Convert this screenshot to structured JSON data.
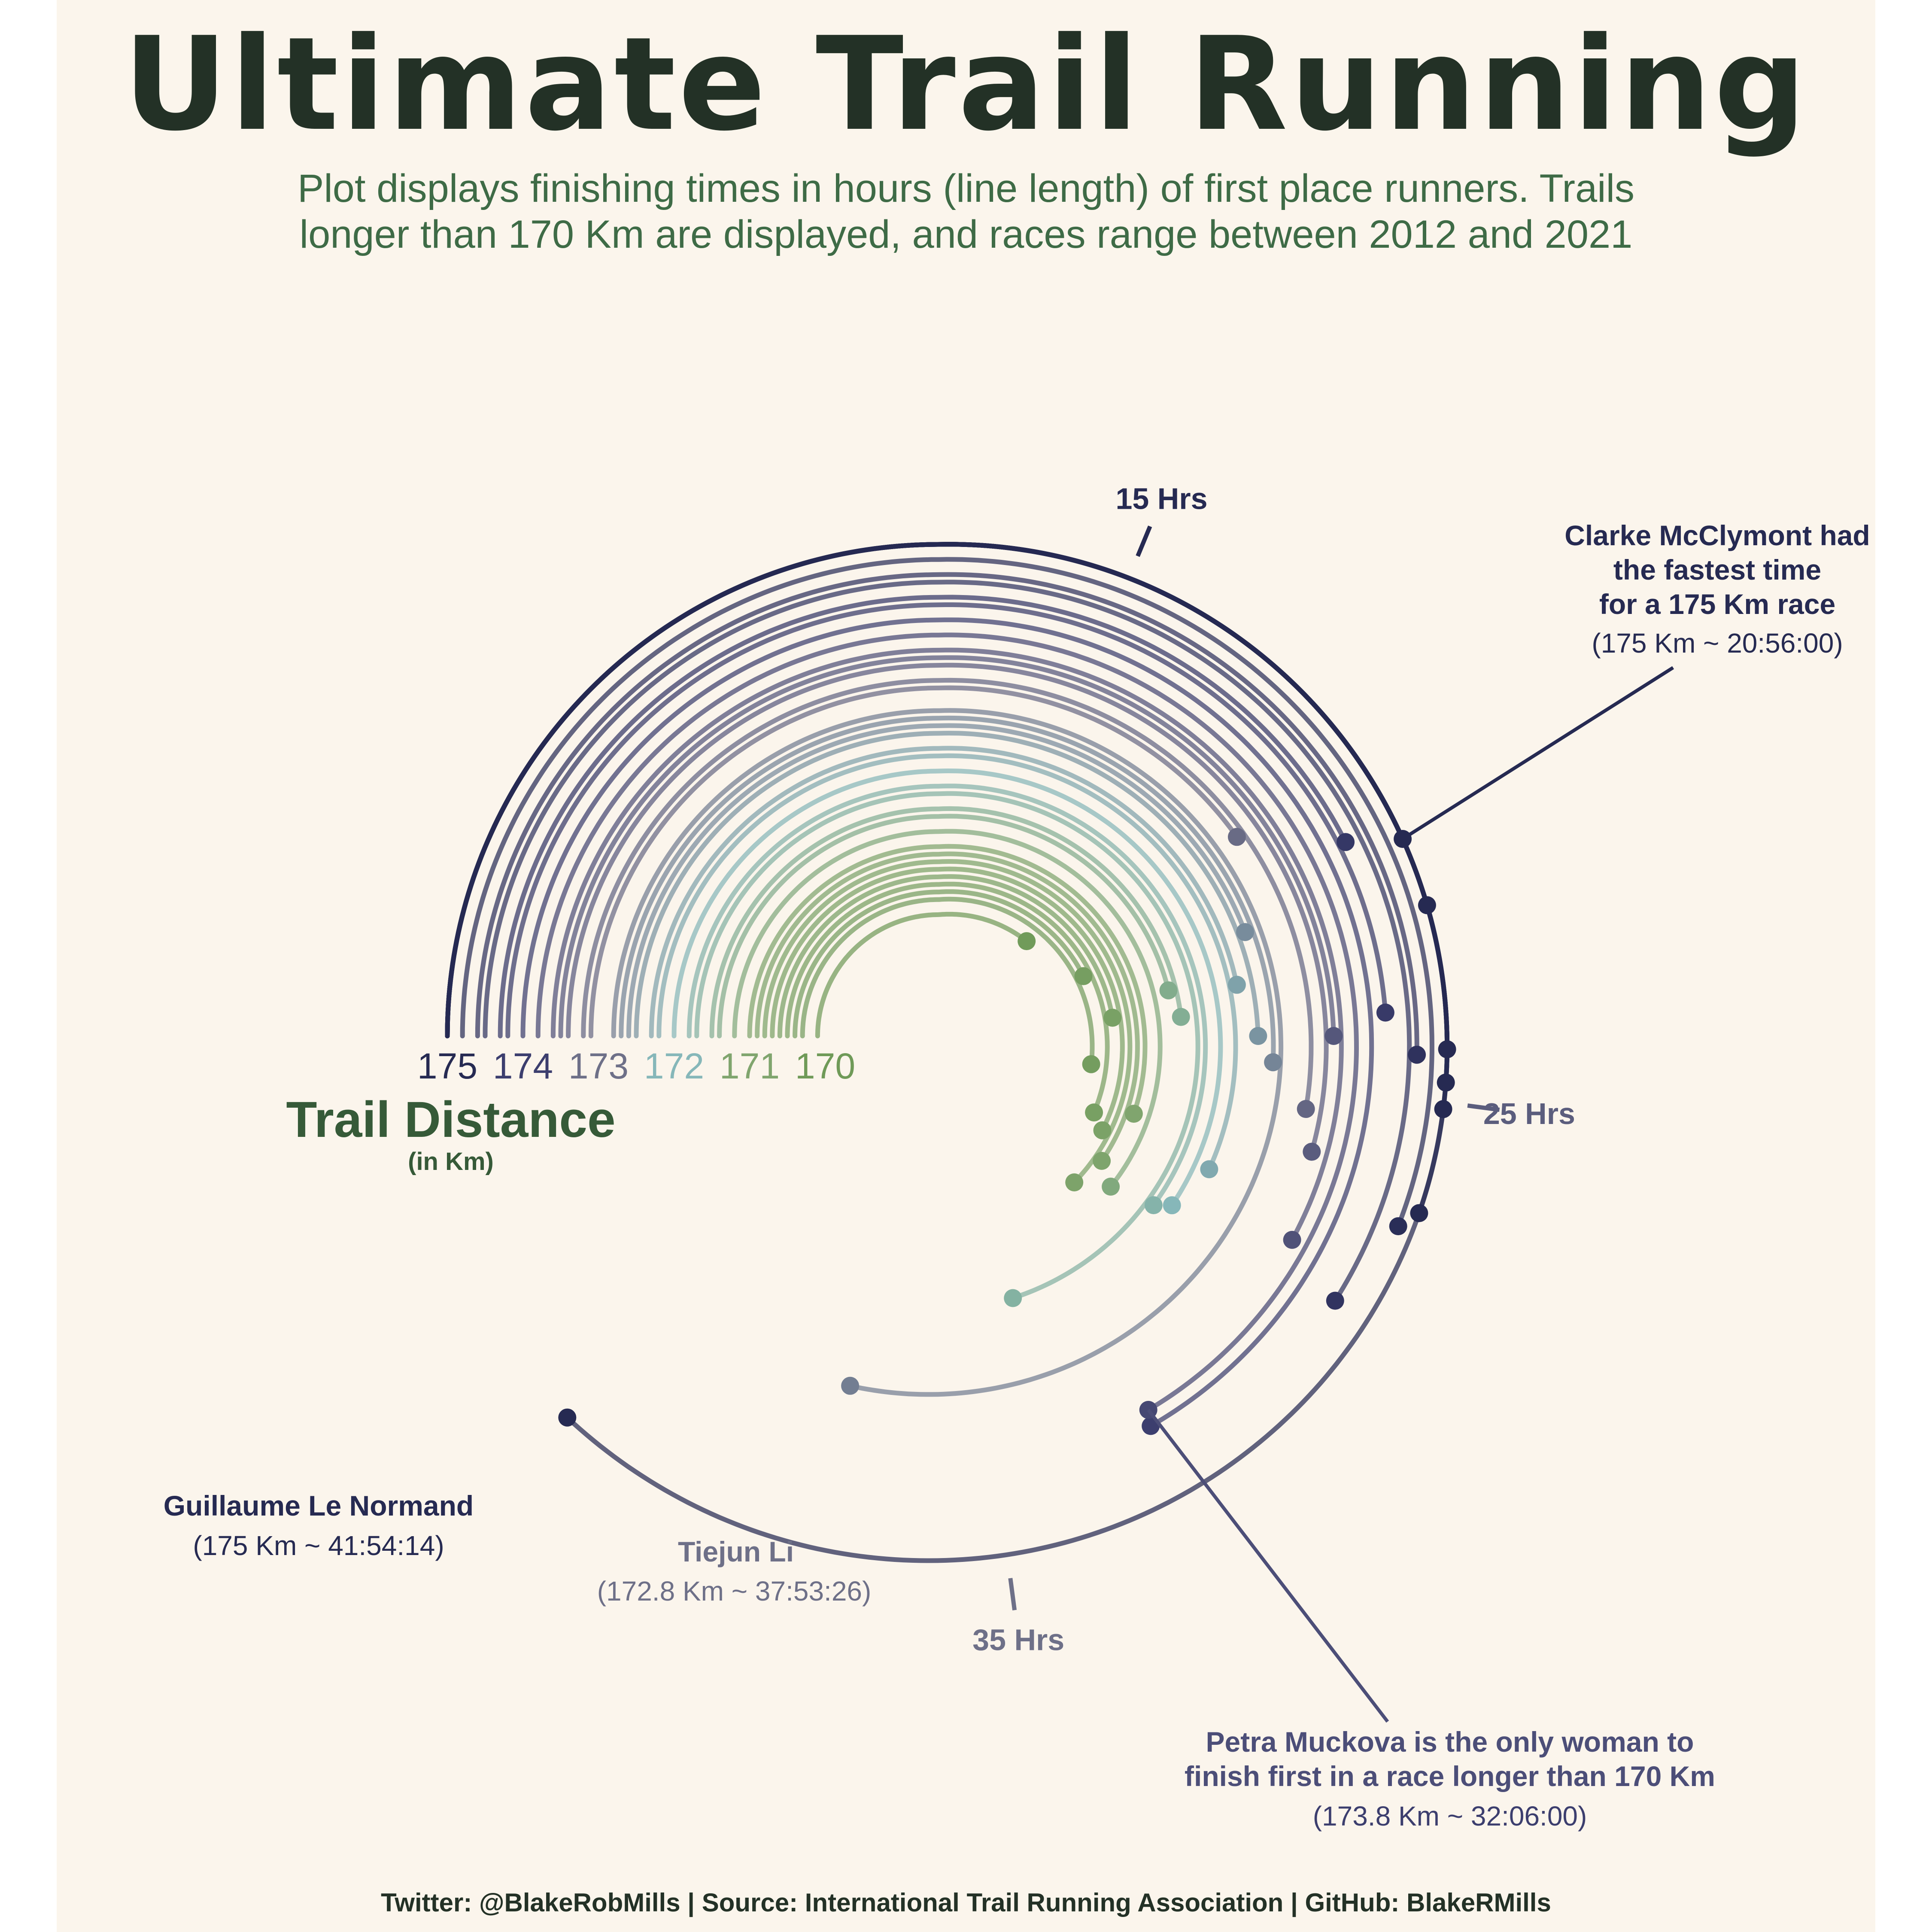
{
  "title": "Ultimate Trail Running",
  "subtitle_lines": [
    "Plot displays finishing times in hours (line length) of first place runners. Trails",
    "longer than 170 Km are displayed, and races range between 2012 and 2021"
  ],
  "caption": "Twitter: @BlakeRobMills | Source: International Trail Running Association | GitHub: BlakeRMills",
  "colors": {
    "background": "#fbf5ec",
    "title": "#233126",
    "subtitle": "#3e6b46",
    "d175": "#262a52",
    "d174": "#3c3e6e",
    "d173": "#6e7088",
    "d172": "#86b7b9",
    "d171": "#80a56e",
    "d170": "#6f9a58"
  },
  "chart_data": {
    "type": "radial-line",
    "description_units": "arc length = finishing time (hours); ring = trail distance (Km)",
    "distance_axis": {
      "title": "Trail Distance",
      "subtitle": "(in Km)",
      "ticks": [
        "175",
        "174",
        "173",
        "172",
        "171",
        "170"
      ]
    },
    "time_ticks": [
      {
        "hours": 15,
        "label": "15 Hrs"
      },
      {
        "hours": 25,
        "label": "25 Hrs"
      },
      {
        "hours": 35,
        "label": "35 Hrs"
      }
    ],
    "angle_zero_hours": 9,
    "series": [
      {
        "distance": 175.0,
        "hours": 25.1
      },
      {
        "distance": 175.0,
        "hours": 24.7
      },
      {
        "distance": 175.0,
        "hours": 24.2
      },
      {
        "distance": 175.0,
        "hours": 22.0
      },
      {
        "distance": 175.0,
        "hours": 20.93
      },
      {
        "distance": 175.0,
        "hours": 26.7
      },
      {
        "distance": 175.0,
        "hours": 41.9
      },
      {
        "distance": 174.8,
        "hours": 27.0
      },
      {
        "distance": 174.6,
        "hours": 24.3
      },
      {
        "distance": 174.5,
        "hours": 28.5
      },
      {
        "distance": 174.3,
        "hours": 20.6
      },
      {
        "distance": 174.2,
        "hours": 23.6
      },
      {
        "distance": 174.0,
        "hours": 32.2
      },
      {
        "distance": 173.8,
        "hours": 32.1
      },
      {
        "distance": 173.6,
        "hours": 28.0
      },
      {
        "distance": 173.5,
        "hours": 24.0
      },
      {
        "distance": 173.4,
        "hours": 26.3
      },
      {
        "distance": 173.2,
        "hours": 25.5
      },
      {
        "distance": 173.1,
        "hours": 19.5
      },
      {
        "distance": 172.8,
        "hours": 37.9
      },
      {
        "distance": 172.7,
        "hours": 24.6
      },
      {
        "distance": 172.6,
        "hours": 21.5
      },
      {
        "distance": 172.5,
        "hours": 24.0
      },
      {
        "distance": 172.3,
        "hours": 22.7
      },
      {
        "distance": 172.2,
        "hours": 27.5
      },
      {
        "distance": 172.0,
        "hours": 28.8
      },
      {
        "distance": 171.8,
        "hours": 29.1
      },
      {
        "distance": 171.7,
        "hours": 33.9
      },
      {
        "distance": 171.5,
        "hours": 23.4
      },
      {
        "distance": 171.4,
        "hours": 22.5
      },
      {
        "distance": 171.2,
        "hours": 29.5
      },
      {
        "distance": 171.0,
        "hours": 26.9
      },
      {
        "distance": 170.9,
        "hours": 29.0
      },
      {
        "distance": 170.8,
        "hours": 30.3
      },
      {
        "distance": 170.7,
        "hours": 28.0
      },
      {
        "distance": 170.6,
        "hours": 23.2
      },
      {
        "distance": 170.5,
        "hours": 27.5
      },
      {
        "distance": 170.4,
        "hours": 21.0
      },
      {
        "distance": 170.3,
        "hours": 25.4
      },
      {
        "distance": 170.1,
        "hours": 17.7
      }
    ],
    "annotations": [
      {
        "id": "clarke",
        "lines": [
          "Clarke McClymont had",
          "the fastest time",
          "for a 175 Km race"
        ],
        "detail": "(175 Km ~ 20:56:00)"
      },
      {
        "id": "guillaume",
        "lines": [
          "Guillaume Le Normand"
        ],
        "detail": "(175 Km ~ 41:54:14)"
      },
      {
        "id": "tiejun",
        "lines": [
          "Tiejun Li"
        ],
        "detail": "(172.8 Km ~ 37:53:26)"
      },
      {
        "id": "petra",
        "lines": [
          "Petra Muckova is the only woman to",
          "finish first in a race longer than 170 Km"
        ],
        "detail": "(173.8 Km ~ 32:06:00)"
      }
    ]
  }
}
